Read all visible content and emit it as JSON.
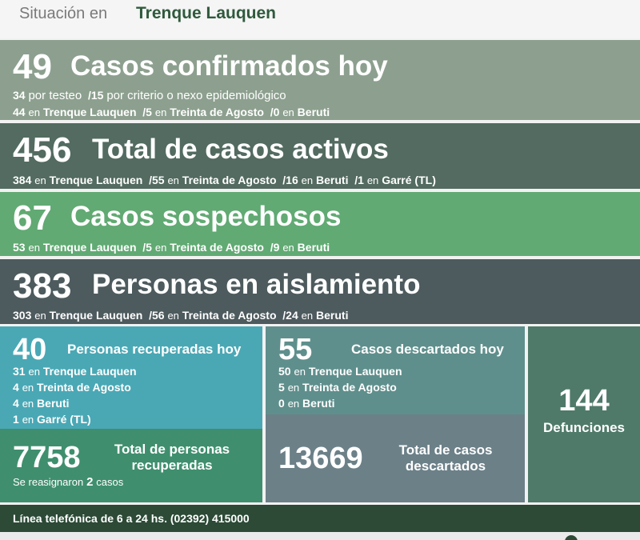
{
  "header": {
    "prefix": "Situación en",
    "city": "Trenque Lauquen"
  },
  "confirmados": {
    "number": "49",
    "title": "Casos confirmados hoy",
    "line1": {
      "a": "34",
      "a_txt": "por testeo",
      "b": "/15",
      "b_txt": "por criterio o nexo epidemiológico"
    },
    "line2": [
      {
        "n": "44",
        "en": "en",
        "place": "Trenque Lauquen"
      },
      {
        "n": "/5",
        "en": "en",
        "place": "Treinta de Agosto"
      },
      {
        "n": "/0",
        "en": "en",
        "place": "Beruti"
      }
    ]
  },
  "activos": {
    "number": "456",
    "title": "Total de casos activos",
    "line": [
      {
        "n": "384",
        "en": "en",
        "place": "Trenque Lauquen"
      },
      {
        "n": "/55",
        "en": "en",
        "place": "Treinta de Agosto"
      },
      {
        "n": "/16",
        "en": "en",
        "place": "Beruti"
      },
      {
        "n": "/1",
        "en": "en",
        "place": "Garré (TL)"
      }
    ]
  },
  "sospechosos": {
    "number": "67",
    "title": "Casos sospechosos",
    "line": [
      {
        "n": "53",
        "en": "en",
        "place": "Trenque Lauquen"
      },
      {
        "n": "/5",
        "en": "en",
        "place": "Treinta de Agosto"
      },
      {
        "n": "/9",
        "en": "en",
        "place": "Beruti"
      }
    ]
  },
  "aislamiento": {
    "number": "383",
    "title": "Personas en aislamiento",
    "line": [
      {
        "n": "303",
        "en": "en",
        "place": "Trenque Lauquen"
      },
      {
        "n": "/56",
        "en": "en",
        "place": "Treinta de Agosto"
      },
      {
        "n": "/24",
        "en": "en",
        "place": "Beruti"
      }
    ]
  },
  "recuperados": {
    "number": "40",
    "title": "Personas recuperadas hoy",
    "rows": [
      {
        "n": "31",
        "en": "en",
        "place": "Trenque Lauquen"
      },
      {
        "n": "4",
        "en": "en",
        "place": "Treinta de Agosto"
      },
      {
        "n": "4",
        "en": "en",
        "place": "Beruti"
      },
      {
        "n": "1",
        "en": "en",
        "place": "Garré (TL)"
      }
    ]
  },
  "total_recuperados": {
    "number": "7758",
    "title_1": "Total de personas",
    "title_2": "recuperadas",
    "note_pre": "Se reasignaron",
    "note_n": "2",
    "note_post": "casos"
  },
  "descartados": {
    "number": "55",
    "title": "Casos descartados hoy",
    "rows": [
      {
        "n": "50",
        "en": "en",
        "place": "Trenque Lauquen"
      },
      {
        "n": "5",
        "en": "en",
        "place": "Treinta de Agosto"
      },
      {
        "n": "0",
        "en": "en",
        "place": "Beruti"
      }
    ]
  },
  "total_descartados": {
    "number": "13669",
    "title_1": "Total de casos",
    "title_2": "descartados"
  },
  "defunciones": {
    "number": "144",
    "title": "Defunciones"
  },
  "footer": {
    "text": "Línea telefónica de 6 a 24 hs. (02392) 415000"
  }
}
